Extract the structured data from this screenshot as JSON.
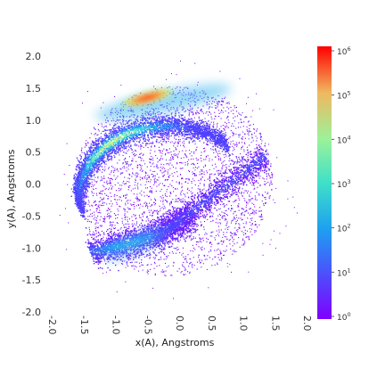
{
  "chart_data": {
    "type": "heatmap",
    "title": "",
    "xlabel": "x(A), Angstroms",
    "ylabel": "y(A), Angstroms",
    "xlim": [
      -2.0,
      2.0
    ],
    "ylim": [
      -2.0,
      2.0
    ],
    "x_ticks": [
      "-2.0",
      "-1.5",
      "-1.0",
      "-0.5",
      "0.0",
      "0.5",
      "1.0",
      "1.5",
      "2.0"
    ],
    "y_ticks": [
      "2.0",
      "1.5",
      "1.0",
      "0.5",
      "0.0",
      "-0.5",
      "-1.0",
      "-1.5",
      "-2.0"
    ],
    "grid": false,
    "colormap": "rainbow",
    "colorbar": {
      "scale": "log",
      "range": [
        1,
        1000000
      ],
      "ticks": [
        {
          "base": "10",
          "exp": "0"
        },
        {
          "base": "10",
          "exp": "1"
        },
        {
          "base": "10",
          "exp": "2"
        },
        {
          "base": "10",
          "exp": "3"
        },
        {
          "base": "10",
          "exp": "4"
        },
        {
          "base": "10",
          "exp": "5"
        },
        {
          "base": "10",
          "exp": "6"
        }
      ]
    },
    "density_features": [
      {
        "description": "peak density ridge",
        "x": -0.4,
        "y": 1.35,
        "count": 1000000
      },
      {
        "description": "upper arc band",
        "x": 0.1,
        "y": 1.25,
        "count": 1000
      },
      {
        "description": "lower-left band",
        "x": -0.6,
        "y": -0.95,
        "count": 300
      },
      {
        "description": "right diagonal band",
        "x": 1.2,
        "y": -0.1,
        "count": 100
      },
      {
        "description": "sparse interior",
        "x": 0.1,
        "y": 0.2,
        "count": 3
      }
    ]
  },
  "colors": {
    "low": "#7f00ff",
    "mid": "#3fc8e8",
    "high": "#ff0000"
  }
}
